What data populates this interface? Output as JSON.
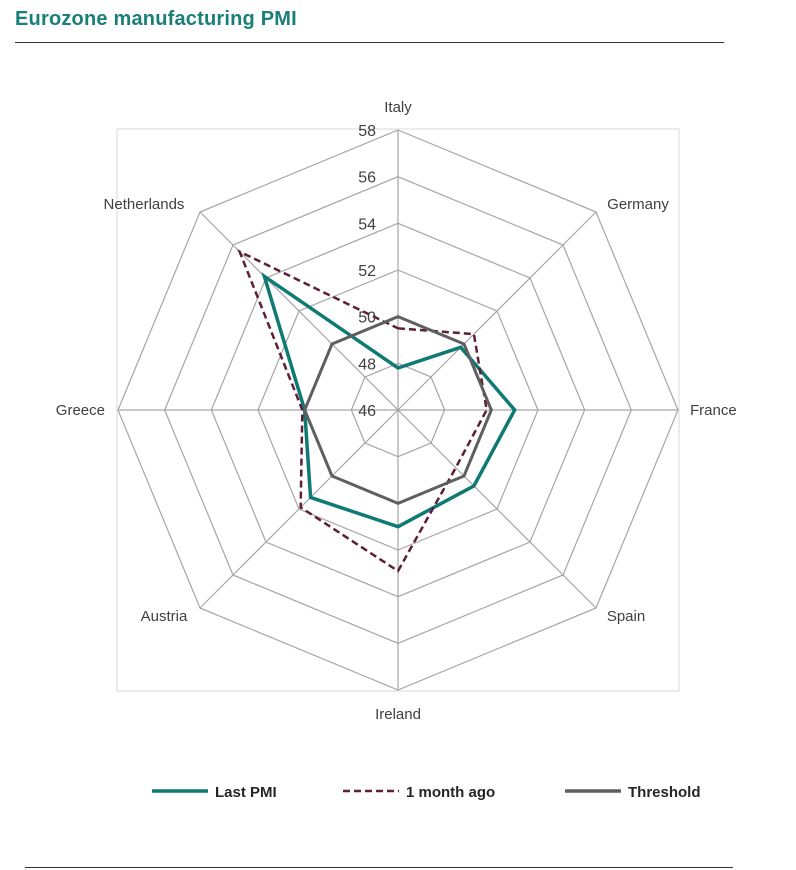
{
  "header": {
    "title": "Eurozone manufacturing  PMI"
  },
  "chart_data": {
    "type": "radar",
    "title": "Eurozone manufacturing  PMI",
    "categories": [
      "Italy",
      "Germany",
      "France",
      "Spain",
      "Ireland",
      "Austria",
      "Greece",
      "Netherlands"
    ],
    "rlim": [
      46,
      58
    ],
    "ticks": [
      46,
      48,
      50,
      52,
      54,
      56,
      58
    ],
    "tick_labels": [
      "46",
      "48",
      "50",
      "52",
      "54",
      "56",
      "58"
    ],
    "series": [
      {
        "name": "Last PMI",
        "values": [
          47.8,
          49.8,
          51.0,
          50.6,
          51.0,
          51.3,
          50.0,
          54.1
        ],
        "color": "#0f7a74",
        "style": "solid"
      },
      {
        "name": "1 month ago",
        "values": [
          49.5,
          50.6,
          49.8,
          49.5,
          52.9,
          51.9,
          50.1,
          55.6
        ],
        "color": "#5e1e3a",
        "style": "dashed"
      },
      {
        "name": "Threshold",
        "values": [
          50,
          50,
          50,
          50,
          50,
          50,
          50,
          50
        ],
        "color": "#5f5f5f",
        "style": "solid"
      }
    ],
    "grid": true,
    "legend_position": "bottom"
  },
  "legend": {
    "items": [
      {
        "label": "Last PMI",
        "color": "#0f7a74",
        "style": "solid"
      },
      {
        "label": "1 month ago",
        "color": "#5e1e3a",
        "style": "dashed"
      },
      {
        "label": "Threshold",
        "color": "#5f5f5f",
        "style": "solid"
      }
    ]
  }
}
